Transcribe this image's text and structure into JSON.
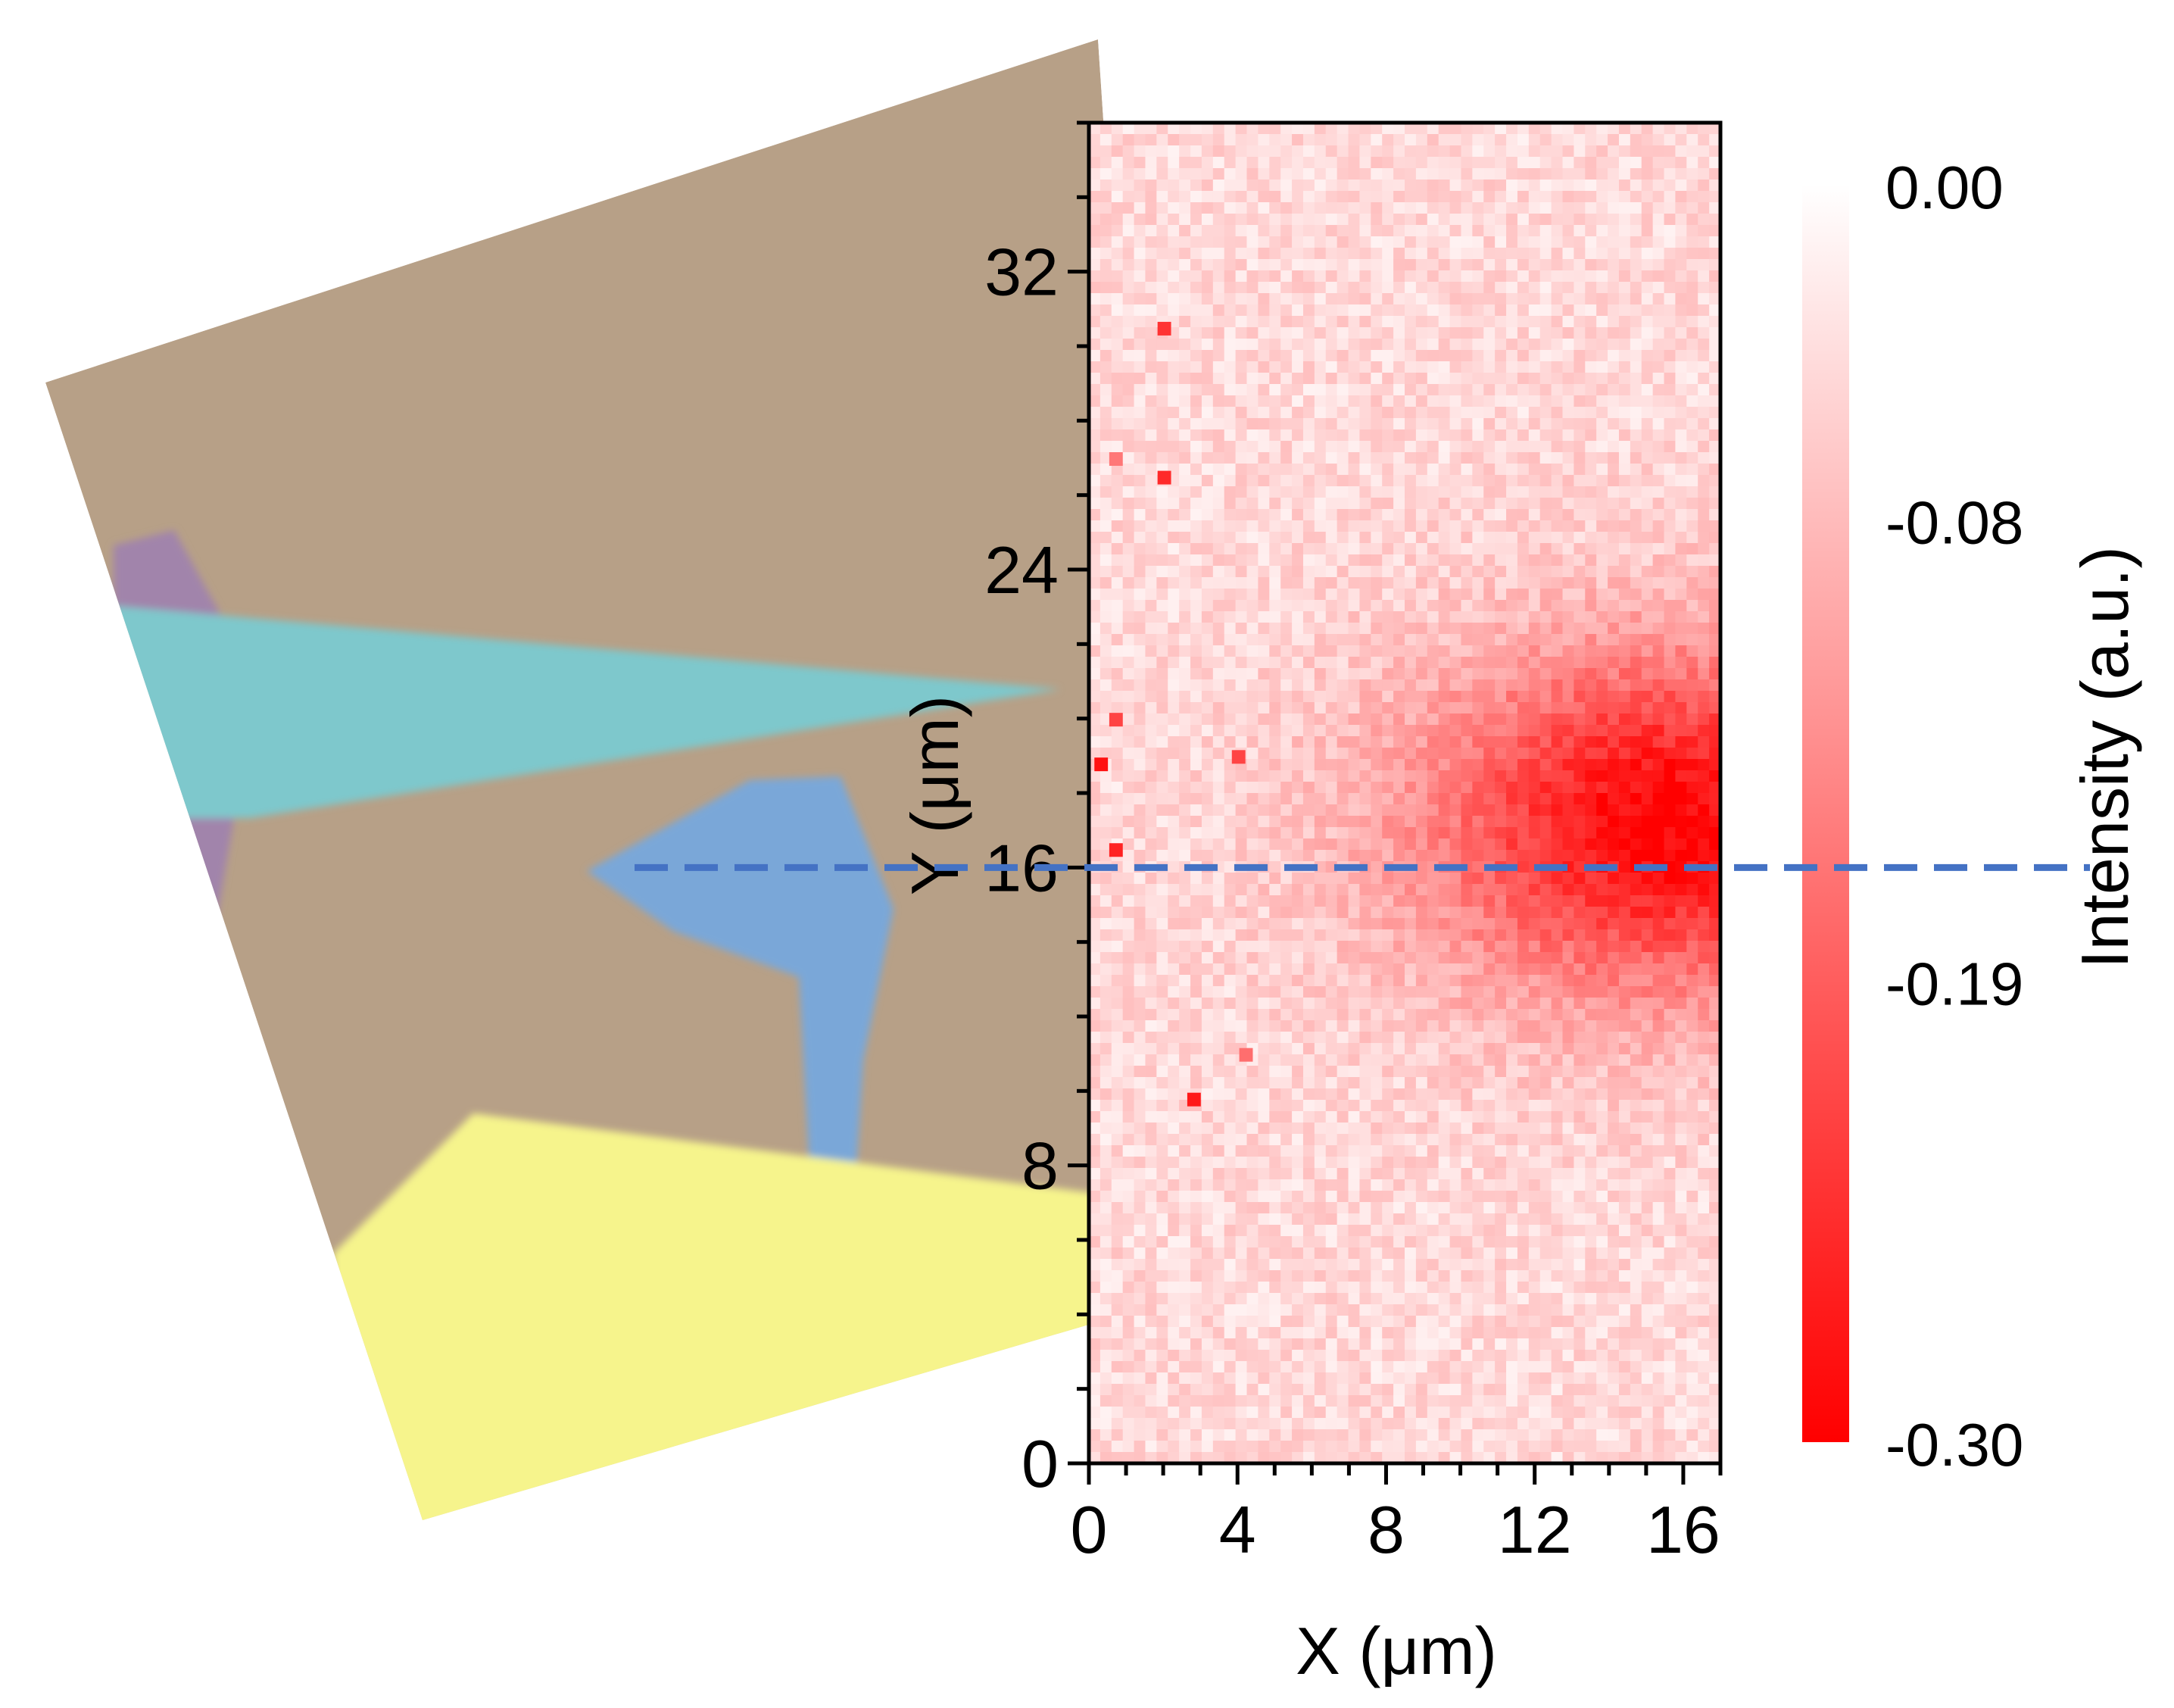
{
  "chart_data": {
    "type": "heatmap",
    "title": "",
    "xlabel": "X (μm)",
    "ylabel": "Y (μm)",
    "x_range": [
      0,
      17
    ],
    "y_range": [
      0,
      36
    ],
    "x_ticks": [
      "0",
      "4",
      "8",
      "12",
      "16"
    ],
    "x_tick_values": [
      0,
      4,
      8,
      12,
      16
    ],
    "y_ticks": [
      "0",
      "8",
      "16",
      "24",
      "32"
    ],
    "y_tick_values": [
      0,
      8,
      16,
      24,
      32
    ],
    "grid": false,
    "colorbar": {
      "label": "Intensity (a.u.)",
      "tick_labels": [
        "0.00",
        "-0.08",
        "-0.19",
        "-0.30"
      ],
      "tick_values": [
        0.0,
        -0.08,
        -0.19,
        -0.3
      ],
      "range": [
        -0.3,
        0.0
      ],
      "color_low": "#ff0000",
      "color_high": "#ffffff"
    },
    "intensity_model": {
      "background": -0.045,
      "peak_value": -0.3,
      "peak_center": [
        15.5,
        17.2
      ],
      "spread": [
        6.5,
        4.6
      ],
      "noise": 0.03
    },
    "hot_pixels": [
      {
        "x": 0.3,
        "y": 18.8,
        "value": -0.28
      },
      {
        "x": 0.7,
        "y": 16.5,
        "value": -0.26
      },
      {
        "x": 0.7,
        "y": 20.0,
        "value": -0.22
      },
      {
        "x": 0.7,
        "y": 27.0,
        "value": -0.16
      },
      {
        "x": 2.0,
        "y": 26.5,
        "value": -0.25
      },
      {
        "x": 2.0,
        "y": 30.5,
        "value": -0.24
      },
      {
        "x": 2.8,
        "y": 9.8,
        "value": -0.27
      },
      {
        "x": 4.0,
        "y": 19.0,
        "value": -0.22
      },
      {
        "x": 4.2,
        "y": 11.0,
        "value": -0.17
      }
    ],
    "reference_line": {
      "y": 16,
      "style": "dashed",
      "color": "#4472c4"
    }
  },
  "colors": {
    "substrate": "#b7a087",
    "flake_cyan": "#7ec8cc",
    "flake_blue": "#7aa7d8",
    "electrode_yellow": "#f6f48c",
    "flake_purple": "#a184ab",
    "axis": "#000000"
  }
}
